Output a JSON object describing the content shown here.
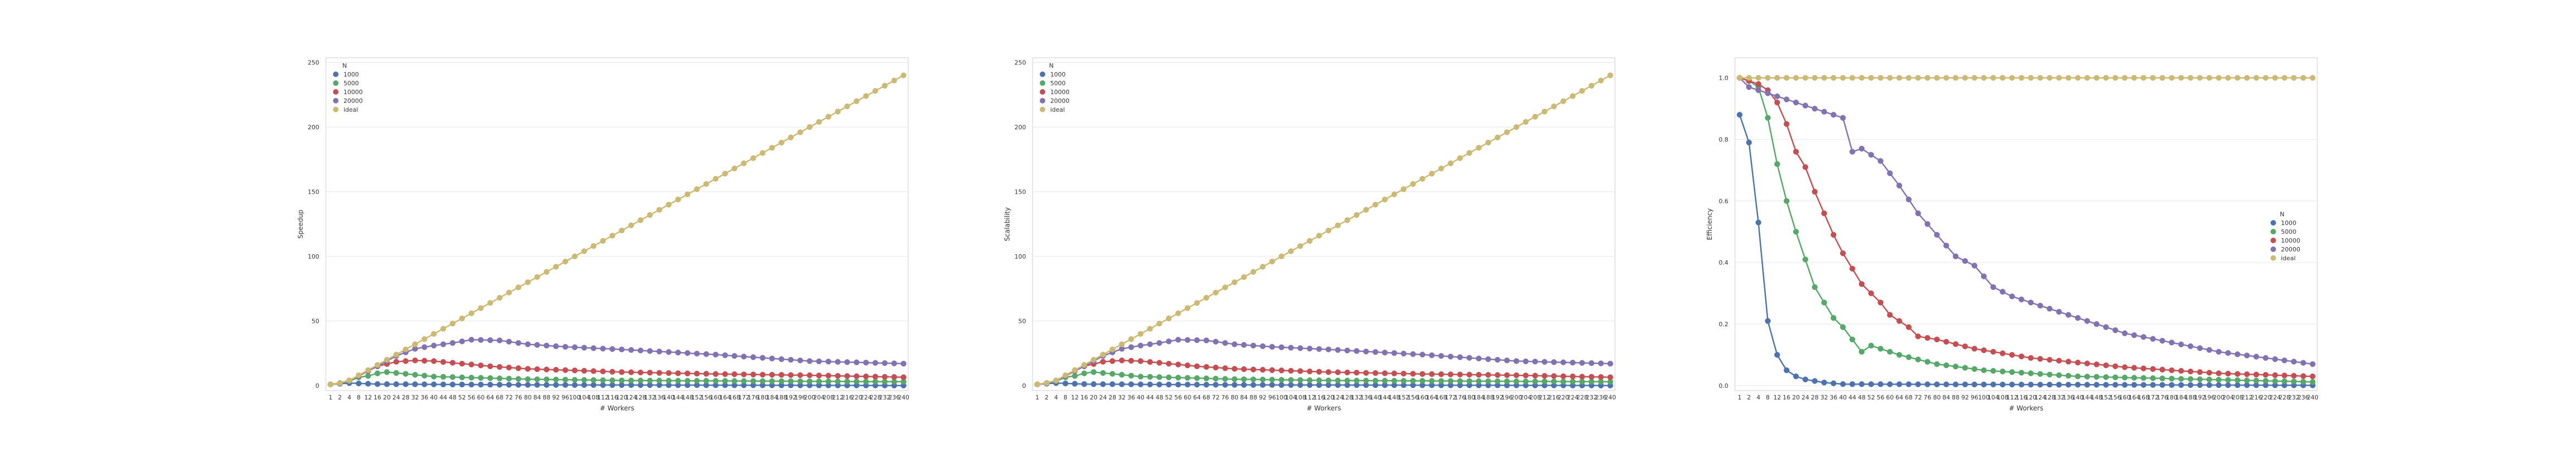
{
  "colors": {
    "background": "#ffffff",
    "grid": "#e6e6e6",
    "axes": "#cccccc",
    "series": {
      "1000": "#4c72b0",
      "5000": "#55a868",
      "10000": "#c44e52",
      "20000": "#8172b2",
      "ideal": "#ccb974"
    }
  },
  "chart_data": [
    {
      "type": "line",
      "xlabel": "# Workers",
      "ylabel": "Speedup",
      "ylim": [
        0,
        250
      ],
      "yticks": [
        0,
        50,
        100,
        150,
        200,
        250
      ],
      "grid": true,
      "legend": {
        "title": "N",
        "placement": "top-left",
        "entries": [
          "1000",
          "5000",
          "10000",
          "20000",
          "ideal"
        ]
      },
      "x_start": 1,
      "x_second": 2,
      "x_step": 4,
      "x_end": 240,
      "series": [
        {
          "name": "1000",
          "keypoints": [
            [
              1,
              1.0
            ],
            [
              2,
              1.5
            ],
            [
              4,
              2.0
            ],
            [
              8,
              1.7
            ],
            [
              16,
              1.2
            ],
            [
              40,
              1.0
            ],
            [
              80,
              0.6
            ],
            [
              240,
              0.1
            ]
          ]
        },
        {
          "name": "5000",
          "keypoints": [
            [
              1,
              1.0
            ],
            [
              2,
              2.0
            ],
            [
              4,
              3.5
            ],
            [
              8,
              6.5
            ],
            [
              12,
              7.5
            ],
            [
              16,
              9.5
            ],
            [
              20,
              10.5
            ],
            [
              24,
              9.8
            ],
            [
              40,
              7.0
            ],
            [
              80,
              5.0
            ],
            [
              120,
              4.0
            ],
            [
              240,
              3.0
            ]
          ]
        },
        {
          "name": "10000",
          "keypoints": [
            [
              1,
              1.0
            ],
            [
              2,
              2.0
            ],
            [
              4,
              4.0
            ],
            [
              8,
              7.5
            ],
            [
              16,
              15.0
            ],
            [
              24,
              18.5
            ],
            [
              32,
              19.5
            ],
            [
              40,
              19.0
            ],
            [
              52,
              17.0
            ],
            [
              64,
              15.0
            ],
            [
              80,
              13.0
            ],
            [
              120,
              10.5
            ],
            [
              160,
              9.0
            ],
            [
              200,
              8.0
            ],
            [
              240,
              6.5
            ]
          ]
        },
        {
          "name": "20000",
          "keypoints": [
            [
              1,
              1.0
            ],
            [
              2,
              2.0
            ],
            [
              4,
              3.9
            ],
            [
              8,
              7.8
            ],
            [
              16,
              15.0
            ],
            [
              24,
              23.0
            ],
            [
              32,
              28.5
            ],
            [
              40,
              31.0
            ],
            [
              48,
              33.0
            ],
            [
              56,
              35.5
            ],
            [
              68,
              35.0
            ],
            [
              80,
              32.0
            ],
            [
              96,
              30.0
            ],
            [
              120,
              28.0
            ],
            [
              160,
              24.0
            ],
            [
              200,
              19.0
            ],
            [
              240,
              17.0
            ]
          ]
        },
        {
          "name": "ideal",
          "keypoints": [
            [
              1,
              1
            ],
            [
              240,
              240
            ]
          ]
        }
      ]
    },
    {
      "type": "line",
      "xlabel": "# Workers",
      "ylabel": "Scalability",
      "ylim": [
        0,
        250
      ],
      "yticks": [
        0,
        50,
        100,
        150,
        200,
        250
      ],
      "grid": true,
      "legend": {
        "title": "N",
        "placement": "top-left",
        "entries": [
          "1000",
          "5000",
          "10000",
          "20000",
          "ideal"
        ]
      },
      "x_start": 1,
      "x_second": 2,
      "x_step": 4,
      "x_end": 240,
      "series": [
        {
          "name": "1000",
          "keypoints": [
            [
              1,
              1.0
            ],
            [
              2,
              1.5
            ],
            [
              4,
              2.0
            ],
            [
              8,
              1.7
            ],
            [
              16,
              1.2
            ],
            [
              40,
              1.0
            ],
            [
              80,
              0.6
            ],
            [
              240,
              0.1
            ]
          ]
        },
        {
          "name": "5000",
          "keypoints": [
            [
              1,
              1.0
            ],
            [
              2,
              2.0
            ],
            [
              4,
              3.5
            ],
            [
              8,
              6.5
            ],
            [
              12,
              7.5
            ],
            [
              16,
              9.5
            ],
            [
              20,
              10.5
            ],
            [
              24,
              9.8
            ],
            [
              40,
              7.0
            ],
            [
              80,
              5.0
            ],
            [
              120,
              4.0
            ],
            [
              240,
              3.0
            ]
          ]
        },
        {
          "name": "10000",
          "keypoints": [
            [
              1,
              1.0
            ],
            [
              2,
              2.0
            ],
            [
              4,
              4.0
            ],
            [
              8,
              7.5
            ],
            [
              16,
              15.0
            ],
            [
              24,
              18.5
            ],
            [
              32,
              19.5
            ],
            [
              40,
              19.0
            ],
            [
              52,
              17.0
            ],
            [
              64,
              15.0
            ],
            [
              80,
              13.0
            ],
            [
              120,
              10.5
            ],
            [
              160,
              9.0
            ],
            [
              200,
              8.0
            ],
            [
              240,
              6.5
            ]
          ]
        },
        {
          "name": "20000",
          "keypoints": [
            [
              1,
              1.0
            ],
            [
              2,
              2.0
            ],
            [
              4,
              3.9
            ],
            [
              8,
              7.8
            ],
            [
              16,
              15.0
            ],
            [
              24,
              23.0
            ],
            [
              32,
              28.5
            ],
            [
              40,
              31.0
            ],
            [
              48,
              33.0
            ],
            [
              56,
              35.5
            ],
            [
              68,
              35.0
            ],
            [
              80,
              32.0
            ],
            [
              96,
              30.0
            ],
            [
              120,
              28.0
            ],
            [
              160,
              24.0
            ],
            [
              200,
              19.0
            ],
            [
              240,
              17.0
            ]
          ]
        },
        {
          "name": "ideal",
          "keypoints": [
            [
              1,
              1
            ],
            [
              240,
              240
            ]
          ]
        }
      ]
    },
    {
      "type": "line",
      "xlabel": "# Workers",
      "ylabel": "Efficiency",
      "ylim": [
        0,
        1.05
      ],
      "yticks": [
        0.0,
        0.2,
        0.4,
        0.6,
        0.8,
        1.0
      ],
      "grid": true,
      "legend": {
        "title": "N",
        "placement": "center-right",
        "entries": [
          "1000",
          "5000",
          "10000",
          "20000",
          "ideal"
        ]
      },
      "x_start": 1,
      "x_second": 2,
      "x_step": 4,
      "x_end": 240,
      "series": [
        {
          "name": "1000",
          "keypoints": [
            [
              1,
              0.88
            ],
            [
              2,
              0.79
            ],
            [
              4,
              0.53
            ],
            [
              8,
              0.21
            ],
            [
              12,
              0.1
            ],
            [
              16,
              0.05
            ],
            [
              20,
              0.03
            ],
            [
              24,
              0.02
            ],
            [
              32,
              0.01
            ],
            [
              40,
              0.005
            ],
            [
              240,
              0.001
            ]
          ]
        },
        {
          "name": "5000",
          "keypoints": [
            [
              1,
              1.0
            ],
            [
              2,
              0.99
            ],
            [
              4,
              0.97
            ],
            [
              8,
              0.87
            ],
            [
              12,
              0.72
            ],
            [
              16,
              0.6
            ],
            [
              20,
              0.5
            ],
            [
              24,
              0.41
            ],
            [
              28,
              0.32
            ],
            [
              32,
              0.27
            ],
            [
              36,
              0.22
            ],
            [
              40,
              0.19
            ],
            [
              44,
              0.15
            ],
            [
              48,
              0.11
            ],
            [
              52,
              0.13
            ],
            [
              56,
              0.12
            ],
            [
              64,
              0.1
            ],
            [
              80,
              0.07
            ],
            [
              100,
              0.05
            ],
            [
              140,
              0.03
            ],
            [
              240,
              0.012
            ]
          ]
        },
        {
          "name": "10000",
          "keypoints": [
            [
              1,
              1.0
            ],
            [
              2,
              0.99
            ],
            [
              4,
              0.98
            ],
            [
              8,
              0.96
            ],
            [
              12,
              0.92
            ],
            [
              16,
              0.85
            ],
            [
              20,
              0.76
            ],
            [
              24,
              0.71
            ],
            [
              28,
              0.63
            ],
            [
              32,
              0.56
            ],
            [
              36,
              0.49
            ],
            [
              40,
              0.43
            ],
            [
              44,
              0.38
            ],
            [
              48,
              0.33
            ],
            [
              52,
              0.3
            ],
            [
              56,
              0.27
            ],
            [
              60,
              0.23
            ],
            [
              64,
              0.21
            ],
            [
              68,
              0.19
            ],
            [
              72,
              0.16
            ],
            [
              80,
              0.15
            ],
            [
              96,
              0.12
            ],
            [
              120,
              0.09
            ],
            [
              160,
              0.06
            ],
            [
              200,
              0.04
            ],
            [
              240,
              0.03
            ]
          ]
        },
        {
          "name": "20000",
          "keypoints": [
            [
              1,
              1.0
            ],
            [
              2,
              0.97
            ],
            [
              4,
              0.96
            ],
            [
              8,
              0.95
            ],
            [
              16,
              0.93
            ],
            [
              24,
              0.91
            ],
            [
              32,
              0.89
            ],
            [
              40,
              0.87
            ],
            [
              44,
              0.76
            ],
            [
              48,
              0.77
            ],
            [
              56,
              0.73
            ],
            [
              64,
              0.65
            ],
            [
              72,
              0.56
            ],
            [
              80,
              0.49
            ],
            [
              88,
              0.42
            ],
            [
              96,
              0.39
            ],
            [
              104,
              0.32
            ],
            [
              112,
              0.29
            ],
            [
              120,
              0.27
            ],
            [
              140,
              0.22
            ],
            [
              160,
              0.17
            ],
            [
              180,
              0.14
            ],
            [
              200,
              0.11
            ],
            [
              220,
              0.09
            ],
            [
              240,
              0.07
            ]
          ]
        },
        {
          "name": "ideal",
          "keypoints": [
            [
              1,
              1.0
            ],
            [
              240,
              1.0
            ]
          ]
        }
      ]
    }
  ]
}
